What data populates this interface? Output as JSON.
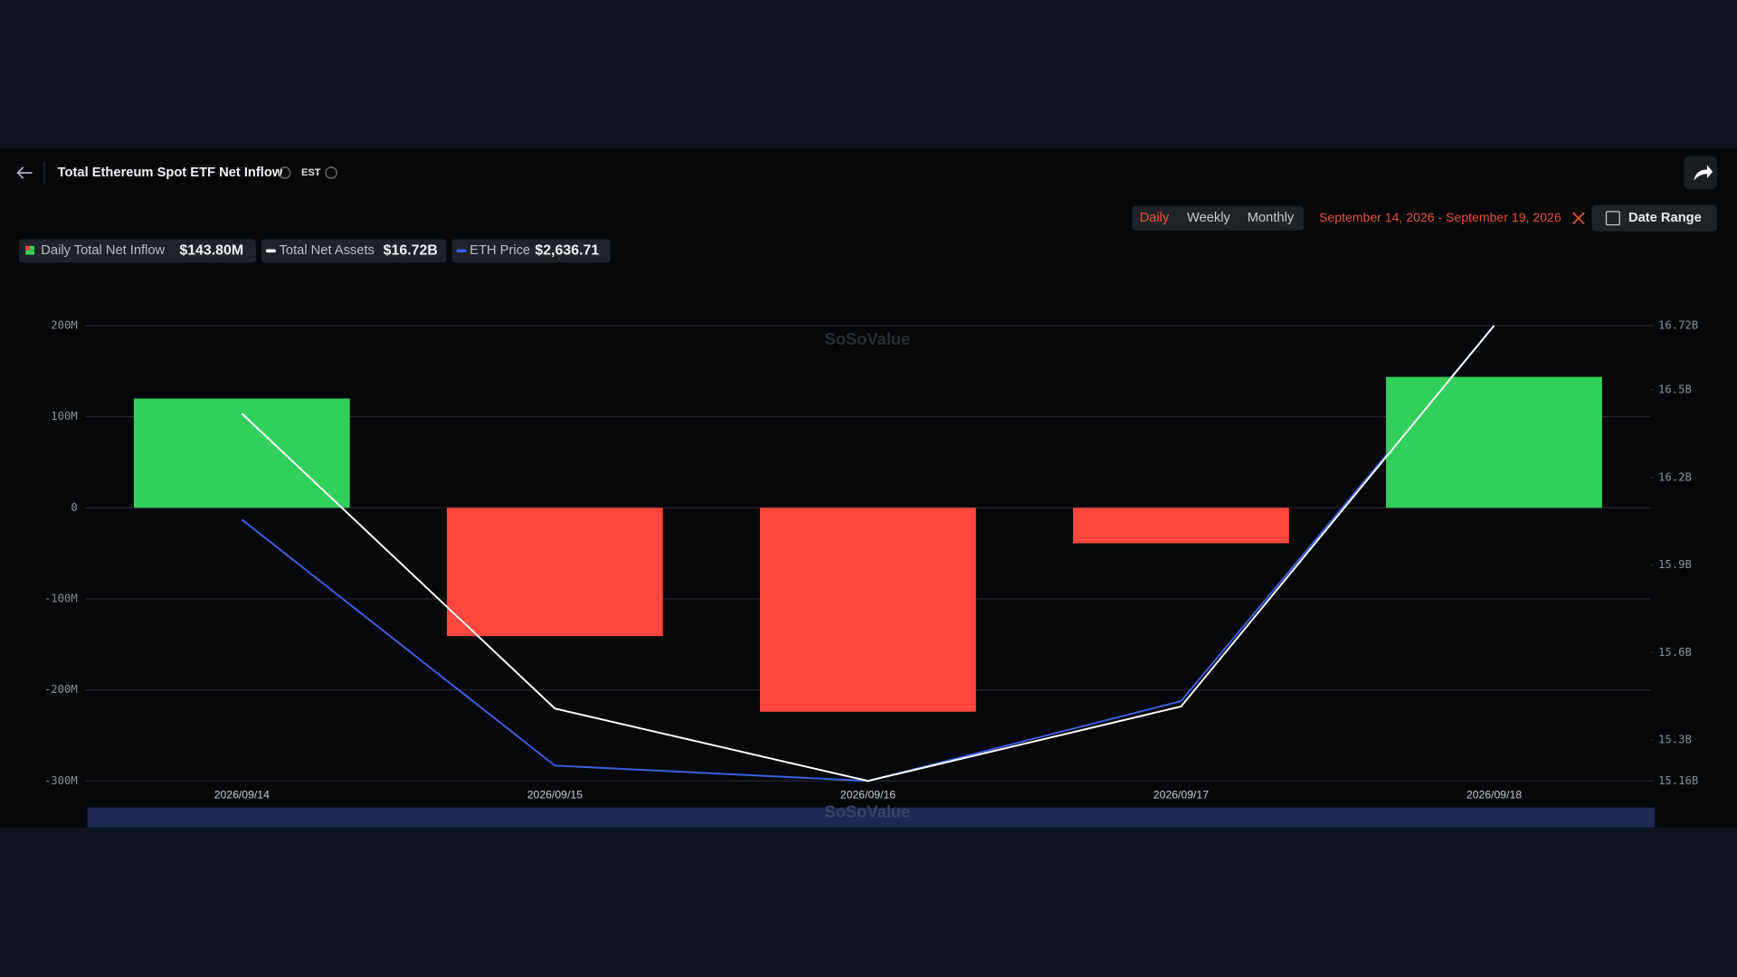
{
  "header": {
    "title": "Total Ethereum Spot ETF Net Inflow",
    "timezone": "EST",
    "periods": [
      "Daily",
      "Weekly",
      "Monthly"
    ],
    "date_range": "September 14, 2026 - September 19, 2026",
    "date_button": "Date Range",
    "legend_values": [
      "$143.80M",
      "$16.72B",
      "$2,636.71"
    ],
    "watermark": "SoSoValue"
  },
  "chart_data": {
    "type": "bar",
    "categories": [
      "2026/09/14",
      "2026/09/15",
      "2026/09/16",
      "2026/09/17",
      "2026/09/18"
    ],
    "series": [
      {
        "name": "Daily Total Net Inflow",
        "type": "bar",
        "color": "#33cf5b",
        "negative_color": "#ff463f",
        "values": [
          120,
          -141,
          -224,
          -39,
          143.8
        ]
      },
      {
        "name": "Total Net Assets",
        "type": "line",
        "axis": "y2",
        "color": "#ffffff",
        "values": [
          16.419,
          15.408,
          15.16,
          15.415,
          16.72
        ]
      },
      {
        "name": "ETH Price",
        "type": "line",
        "axis": "y3",
        "color": "#3d5fe0",
        "values": [
          2484.8,
          2292,
          2280,
          2342.5,
          2636.71
        ]
      }
    ],
    "ylim": [
      -300,
      200
    ],
    "yticks": [
      {
        "value": 200,
        "label": "200M"
      },
      {
        "value": 100,
        "label": "100M"
      },
      0,
      {
        "value": -100,
        "label": "-100M"
      },
      {
        "value": -200,
        "label": "-200M"
      },
      {
        "value": -300,
        "label": "-300M"
      }
    ],
    "y2lim": [
      15.16,
      16.72
    ],
    "y2ticks": [
      {
        "value": 16.72,
        "label": "16.72B"
      },
      {
        "value": 16.5,
        "label": "16.5B"
      },
      {
        "value": 16.2,
        "label": "16.2B"
      },
      {
        "value": 15.9,
        "label": "15.9B"
      },
      {
        "value": 15.6,
        "label": "15.6B"
      },
      {
        "value": 15.3,
        "label": "15.3B"
      },
      {
        "value": 15.16,
        "label": "15.16B"
      }
    ],
    "y3lim": [
      2280,
      2636.71
    ],
    "grid": true
  }
}
